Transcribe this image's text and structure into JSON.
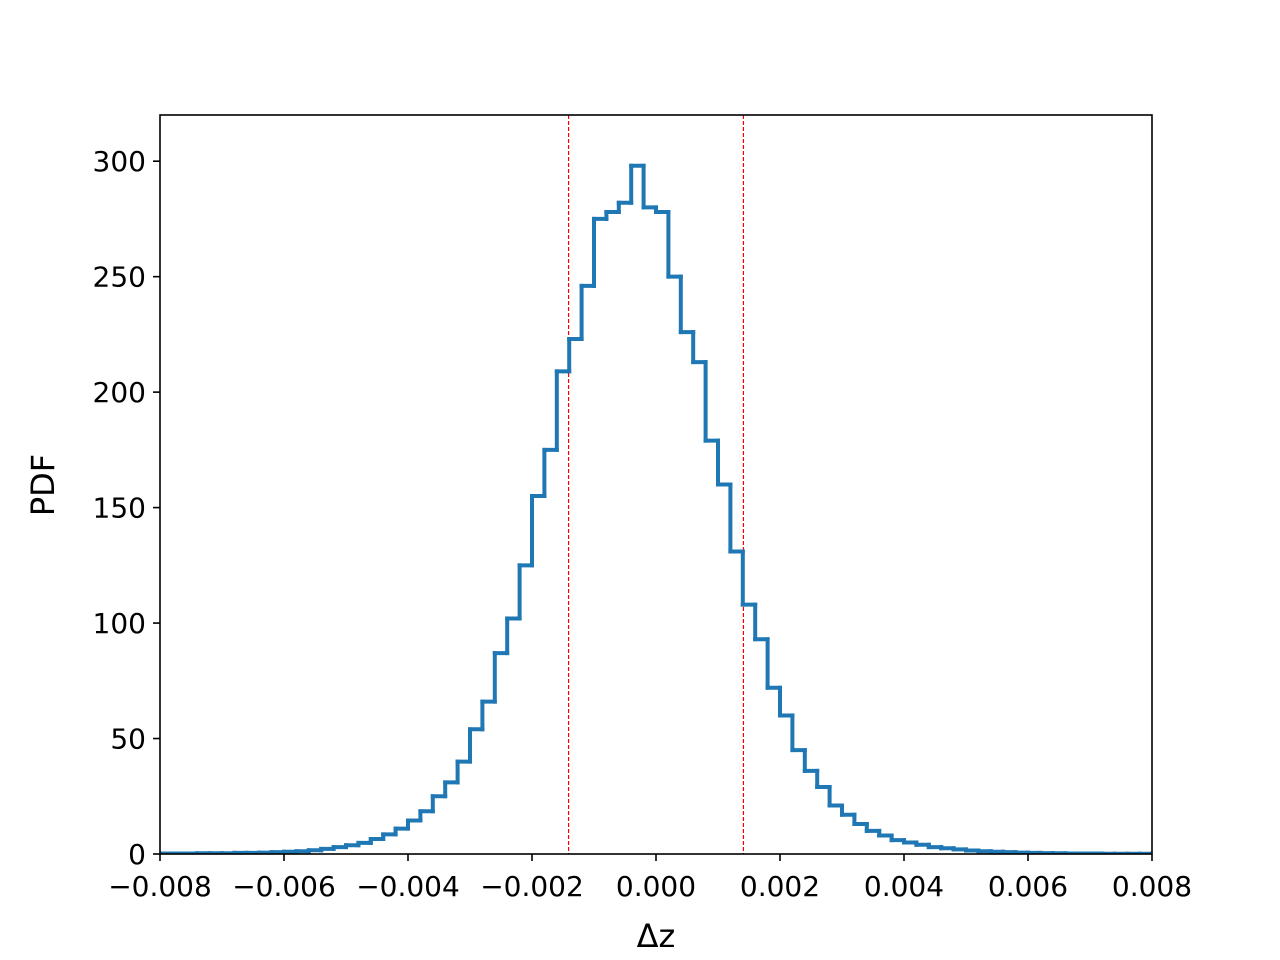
{
  "chart_data": {
    "type": "line",
    "xlabel": "Δz",
    "ylabel": "PDF",
    "xlim": [
      -0.008,
      0.008
    ],
    "ylim": [
      0,
      320
    ],
    "grid": false,
    "x_ticks": [
      -0.008,
      -0.006,
      -0.004,
      -0.002,
      0.0,
      0.002,
      0.004,
      0.006,
      0.008
    ],
    "x_tick_labels": [
      "−0.008",
      "−0.006",
      "−0.004",
      "−0.002",
      "0.000",
      "0.002",
      "0.004",
      "0.006",
      "0.008"
    ],
    "y_ticks": [
      0,
      50,
      100,
      150,
      200,
      250,
      300
    ],
    "y_tick_labels": [
      "0",
      "50",
      "100",
      "150",
      "200",
      "250",
      "300"
    ],
    "series": [
      {
        "style": "step-histogram",
        "color": "#1f77b4",
        "bin_edges": [
          -0.0094,
          -0.0092,
          -0.009,
          -0.0088,
          -0.0086,
          -0.0084,
          -0.0082,
          -0.008,
          -0.0078,
          -0.0076,
          -0.0074,
          -0.0072,
          -0.007,
          -0.0068,
          -0.0066,
          -0.0064,
          -0.0062,
          -0.006,
          -0.0058,
          -0.0056,
          -0.0054,
          -0.0052,
          -0.005,
          -0.0048,
          -0.0046,
          -0.0044,
          -0.0042,
          -0.004,
          -0.0038,
          -0.0036,
          -0.0034,
          -0.0032,
          -0.003,
          -0.0028,
          -0.0026,
          -0.0024,
          -0.0022,
          -0.002,
          -0.0018,
          -0.0016,
          -0.0014,
          -0.0012,
          -0.001,
          -0.0008,
          -0.0006,
          -0.0004,
          -0.0002,
          0.0,
          0.0002,
          0.0004,
          0.0006,
          0.0008,
          0.001,
          0.0012,
          0.0014,
          0.0016,
          0.0018,
          0.002,
          0.0022,
          0.0024,
          0.0026,
          0.0028,
          0.003,
          0.0032,
          0.0034,
          0.0036,
          0.0038,
          0.004,
          0.0042,
          0.0044,
          0.0046,
          0.0048,
          0.005,
          0.0052,
          0.0054,
          0.0056,
          0.0058,
          0.006,
          0.0062,
          0.0064,
          0.0066,
          0.0068,
          0.007,
          0.0072,
          0.0074,
          0.0076,
          0.0078,
          0.008,
          0.0082
        ],
        "values": [
          0.1,
          0.1,
          0.1,
          0.1,
          0.1,
          0.1,
          0.1,
          0.2,
          0.2,
          0.2,
          0.3,
          0.3,
          0.3,
          0.5,
          0.5,
          0.6,
          0.8,
          1.0,
          1.2,
          1.6,
          2.2,
          3.0,
          3.8,
          4.8,
          6.5,
          8.5,
          11.0,
          14.5,
          18.5,
          25.0,
          31.0,
          40.0,
          54.0,
          66.0,
          87.0,
          102.0,
          125.0,
          155.0,
          175.0,
          209.0,
          223.0,
          246.0,
          275.0,
          278.0,
          282.0,
          298.0,
          280.0,
          278.0,
          250.0,
          226.0,
          213.0,
          179.0,
          160.0,
          131.0,
          108.0,
          93.0,
          72.0,
          60.0,
          45.0,
          36.0,
          29.0,
          21.0,
          17.0,
          13.0,
          10.0,
          8.0,
          6.0,
          5.0,
          4.0,
          3.0,
          2.5,
          2.0,
          1.5,
          1.2,
          1.0,
          0.8,
          0.6,
          0.5,
          0.4,
          0.3,
          0.2,
          0.2,
          0.2,
          0.1,
          0.1,
          0.1,
          0.1,
          0.1
        ]
      }
    ],
    "vlines": [
      {
        "x": -0.00141,
        "color": "#ff0000",
        "style": "dashed"
      },
      {
        "x": 0.00141,
        "color": "#ff0000",
        "style": "dashed"
      }
    ]
  }
}
